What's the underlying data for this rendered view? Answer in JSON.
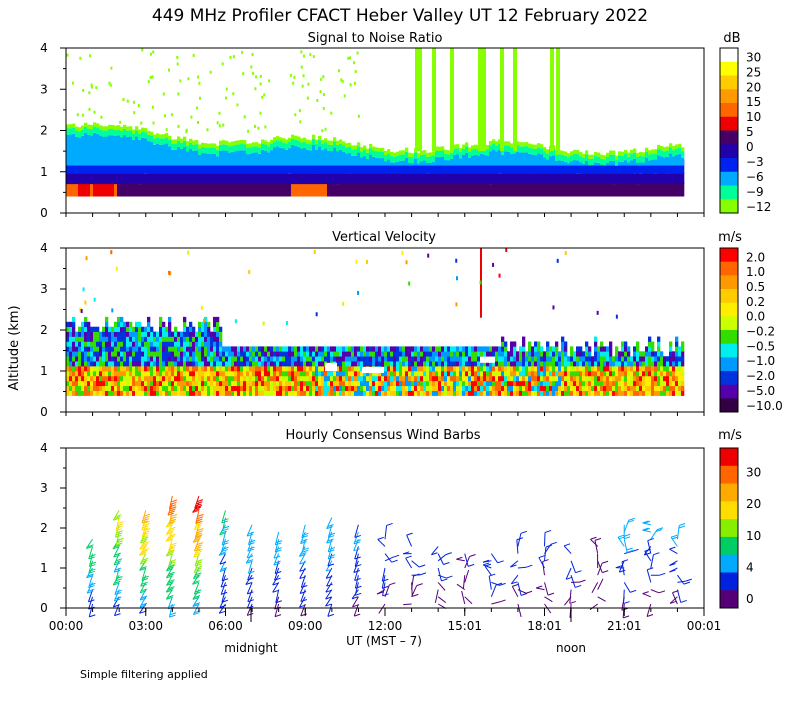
{
  "title": "449 MHz Profiler CFACT Heber Valley UT 12 February 2022",
  "y_axis_label": "Altitude (km)",
  "x_axis": {
    "ticks": [
      "00:00",
      "03:00",
      "06:00",
      "09:00",
      "12:00",
      "15:01",
      "18:01",
      "21:01",
      "00:01"
    ],
    "label": "UT  (MST – 7)",
    "markers": [
      "midnight",
      "noon"
    ]
  },
  "footnote": "Simple filtering applied",
  "chart_data": [
    {
      "type": "heatmap",
      "title": "Signal to Noise Ratio",
      "units": "dB",
      "ylim": [
        0,
        4
      ],
      "yticks": [
        "0",
        "1",
        "2",
        "3",
        "4"
      ],
      "colorbar_ticks": [
        "30",
        "25",
        "20",
        "15",
        "10",
        "5",
        "0",
        "−3",
        "−6",
        "−9",
        "−12"
      ],
      "colorbar_colors": [
        "#ffffff",
        "#ffff00",
        "#ffcc00",
        "#ff9900",
        "#ff6600",
        "#ee0000",
        "#440066",
        "#2200aa",
        "#0022ee",
        "#00aaff",
        "#00ff99",
        "#88ff00"
      ],
      "description_of_values": "Strong returns (0 to 10 dB) below ~1 km; weak (−9 to −12 dB) echoes up to ~2 km; scattered weak columns to 4 km"
    },
    {
      "type": "heatmap",
      "title": "Vertical Velocity",
      "units": "m/s",
      "ylim": [
        0,
        4
      ],
      "yticks": [
        "0",
        "1",
        "2",
        "3",
        "4"
      ],
      "colorbar_ticks": [
        "2.0",
        "1.0",
        "0.5",
        "0.2",
        "0.0",
        "−0.2",
        "−0.5",
        "−1.0",
        "−2.0",
        "−5.0",
        "−10.0"
      ],
      "colorbar_colors": [
        "#ff0000",
        "#ff6600",
        "#ff9900",
        "#ffcc00",
        "#ffee00",
        "#ccff00",
        "#33dd00",
        "#00eeee",
        "#0099ff",
        "#0033dd",
        "#5500aa",
        "#330044"
      ]
    },
    {
      "type": "wind_barbs",
      "title": "Hourly Consensus Wind Barbs",
      "units": "m/s",
      "ylim": [
        0,
        4
      ],
      "yticks": [
        "0",
        "1",
        "2",
        "3",
        "4"
      ],
      "colorbar_ticks": [
        "30",
        "20",
        "10",
        "4",
        "0"
      ],
      "colorbar_colors": [
        "#ee0000",
        "#ff6600",
        "#ffaa00",
        "#ffdd00",
        "#88ee00",
        "#00cc66",
        "#00aaff",
        "#0022dd",
        "#550077"
      ],
      "hours": [
        1,
        2,
        3,
        4,
        5,
        6,
        7,
        8,
        9,
        10,
        11,
        12,
        13,
        14,
        15,
        16,
        17,
        18,
        19,
        20,
        21,
        22,
        23
      ],
      "top_altitude_km": [
        1.8,
        2.5,
        2.5,
        2.9,
        2.9,
        2.5,
        2.1,
        2.0,
        2.2,
        2.3,
        2.2,
        1.8,
        1.6,
        1.6,
        1.5,
        1.5,
        1.6,
        1.6,
        1.5,
        1.7,
        2.2,
        2.2,
        1.8
      ],
      "max_speed_ms": [
        14,
        18,
        22,
        26,
        28,
        12,
        10,
        10,
        10,
        10,
        8,
        7,
        6,
        5,
        4,
        8,
        6,
        5,
        5,
        4,
        9,
        9,
        8
      ]
    }
  ]
}
